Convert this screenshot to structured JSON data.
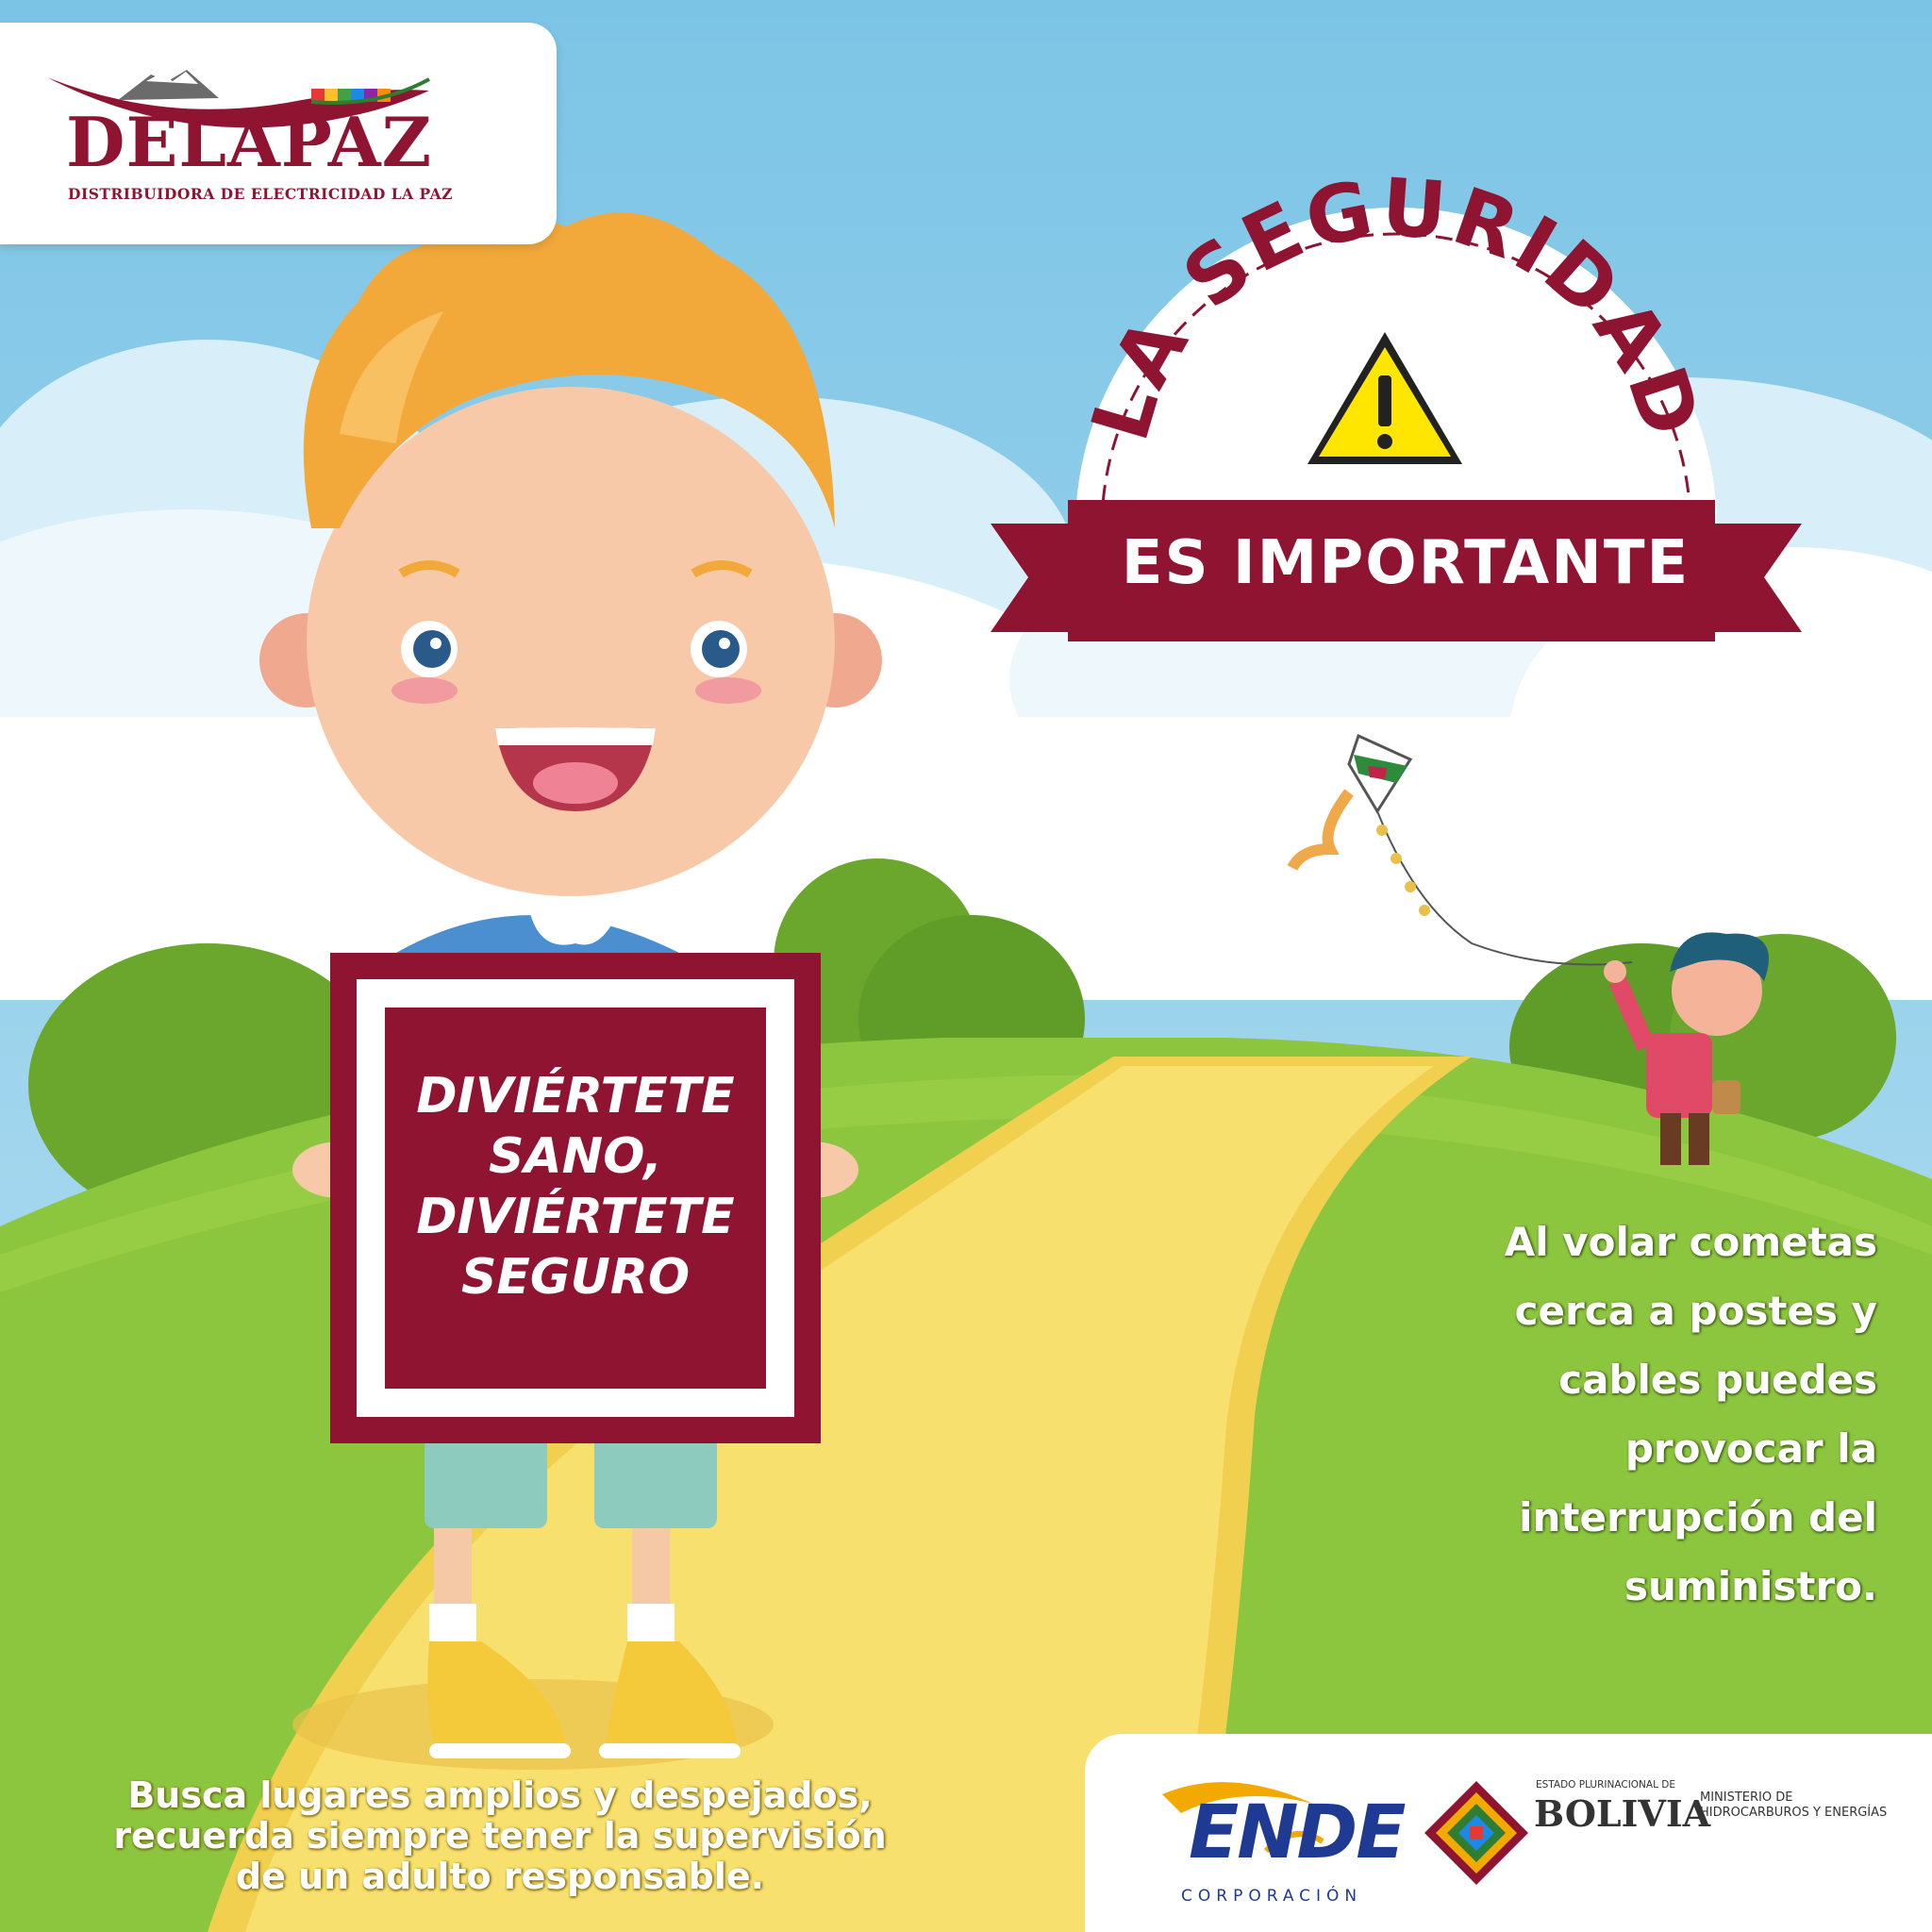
{
  "brand": {
    "name": "DELAPAZ",
    "tagline": "DISTRIBUIDORA DE ELECTRICIDAD LA PAZ"
  },
  "badge": {
    "arc_text": "LA SEGURIDAD",
    "banner_text": "ES IMPORTANTE",
    "icon": "warning-triangle-icon"
  },
  "sign": {
    "lines": [
      "DIVIÉRTETE",
      "SANO,",
      "DIVIÉRTETE",
      "SEGURO"
    ]
  },
  "message": {
    "lines": [
      "Al volar cometas",
      "cerca a postes y",
      "cables puedes",
      "provocar la",
      "interrupción del",
      "suministro."
    ]
  },
  "advice": {
    "lines": [
      "Busca lugares amplios y despejados,",
      "recuerda siempre tener la supervisión",
      "de un adulto responsable."
    ]
  },
  "footer": {
    "ende_name": "ENDE",
    "ende_sub": "CORPORACIÓN",
    "bolivia_small": "ESTADO PLURINACIONAL DE",
    "bolivia_big": "BOLIVIA",
    "ministry_lines": [
      "MINISTERIO DE",
      "HIDROCARBUROS Y ENERGÍAS"
    ]
  },
  "colors": {
    "sky": "#86c9e8",
    "maroon": "#8e1431",
    "path": "#f6dd6a",
    "grass": "#8cc63f",
    "warning": "#ffe600"
  }
}
